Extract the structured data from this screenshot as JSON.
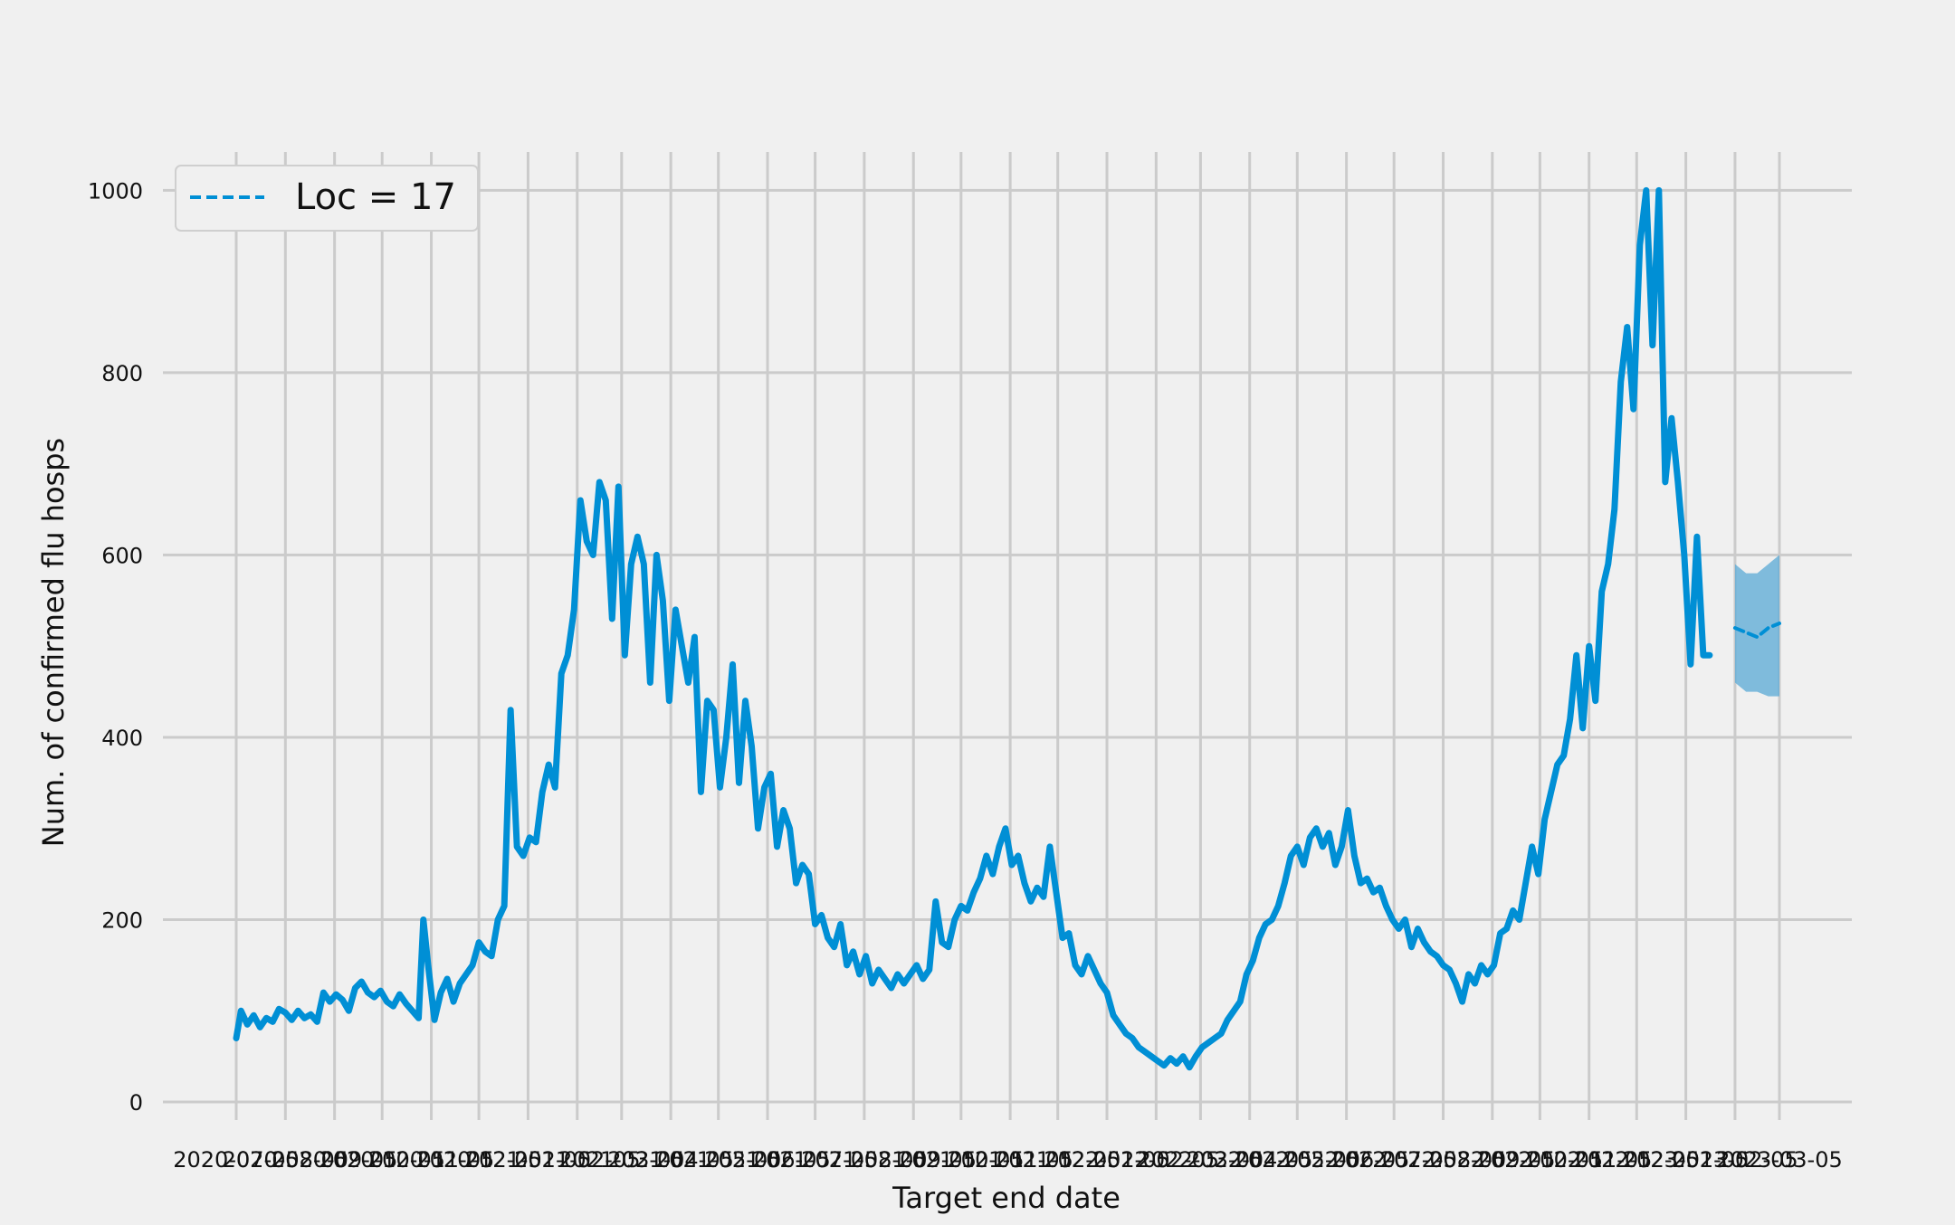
{
  "chart_data": {
    "type": "line",
    "title": "",
    "xlabel": "Target end date",
    "ylabel": "Num. of confirmed flu hosps",
    "ylim": [
      0,
      1050
    ],
    "yticks": [
      0,
      200,
      400,
      600,
      800,
      1000
    ],
    "x_start_date": "2020-07-05",
    "x_end_date": "2023-03-05",
    "xtick_labels": [
      "2020-07-05",
      "2020-08-05",
      "2020-09-05",
      "2020-10-05",
      "2020-11-05",
      "2020-12-05",
      "2021-01-05",
      "2021-02-05",
      "2021-03-05",
      "2021-04-05",
      "2021-05-05",
      "2021-06-05",
      "2021-07-05",
      "2021-08-05",
      "2021-09-05",
      "2021-10-05",
      "2021-11-05",
      "2021-12-05",
      "2022-01-05",
      "2022-02-05",
      "2022-03-05",
      "2022-04-05",
      "2022-05-05",
      "2022-06-05",
      "2022-07-05",
      "2022-08-05",
      "2022-09-05",
      "2022-10-05",
      "2022-11-05",
      "2022-12-05",
      "2023-01-05",
      "2023-02-05",
      "2023-03-05"
    ],
    "grid": true,
    "legend": {
      "placement": "top-left",
      "entries": [
        "Loc = 17"
      ]
    },
    "colors": {
      "line": "#008fd5",
      "band": "#5aa9d6",
      "background": "#f0f0f0",
      "grid": "#cbcbcb"
    },
    "series": [
      {
        "name": "",
        "style": "solid",
        "points": [
          [
            "2020-07-05",
            70
          ],
          [
            "2020-07-08",
            100
          ],
          [
            "2020-07-12",
            85
          ],
          [
            "2020-07-16",
            95
          ],
          [
            "2020-07-20",
            82
          ],
          [
            "2020-07-24",
            92
          ],
          [
            "2020-07-28",
            88
          ],
          [
            "2020-08-01",
            102
          ],
          [
            "2020-08-05",
            98
          ],
          [
            "2020-08-09",
            90
          ],
          [
            "2020-08-13",
            100
          ],
          [
            "2020-08-17",
            92
          ],
          [
            "2020-08-21",
            96
          ],
          [
            "2020-08-25",
            88
          ],
          [
            "2020-08-29",
            120
          ],
          [
            "2020-09-02",
            110
          ],
          [
            "2020-09-06",
            118
          ],
          [
            "2020-09-10",
            112
          ],
          [
            "2020-09-14",
            100
          ],
          [
            "2020-09-18",
            125
          ],
          [
            "2020-09-22",
            132
          ],
          [
            "2020-09-26",
            120
          ],
          [
            "2020-09-30",
            115
          ],
          [
            "2020-10-04",
            122
          ],
          [
            "2020-10-08",
            110
          ],
          [
            "2020-10-12",
            105
          ],
          [
            "2020-10-16",
            118
          ],
          [
            "2020-10-20",
            108
          ],
          [
            "2020-10-24",
            100
          ],
          [
            "2020-10-28",
            92
          ],
          [
            "2020-10-31",
            200
          ],
          [
            "2020-11-03",
            150
          ],
          [
            "2020-11-07",
            90
          ],
          [
            "2020-11-11",
            120
          ],
          [
            "2020-11-15",
            135
          ],
          [
            "2020-11-19",
            110
          ],
          [
            "2020-11-23",
            130
          ],
          [
            "2020-11-27",
            140
          ],
          [
            "2020-12-01",
            150
          ],
          [
            "2020-12-05",
            175
          ],
          [
            "2020-12-09",
            165
          ],
          [
            "2020-12-13",
            160
          ],
          [
            "2020-12-17",
            200
          ],
          [
            "2020-12-21",
            215
          ],
          [
            "2020-12-25",
            430
          ],
          [
            "2020-12-29",
            280
          ],
          [
            "2021-01-02",
            270
          ],
          [
            "2021-01-06",
            290
          ],
          [
            "2021-01-10",
            285
          ],
          [
            "2021-01-14",
            340
          ],
          [
            "2021-01-18",
            370
          ],
          [
            "2021-01-22",
            345
          ],
          [
            "2021-01-26",
            470
          ],
          [
            "2021-01-30",
            490
          ],
          [
            "2021-02-03",
            540
          ],
          [
            "2021-02-07",
            660
          ],
          [
            "2021-02-11",
            615
          ],
          [
            "2021-02-15",
            600
          ],
          [
            "2021-02-19",
            680
          ],
          [
            "2021-02-23",
            660
          ],
          [
            "2021-02-27",
            530
          ],
          [
            "2021-03-03",
            675
          ],
          [
            "2021-03-07",
            490
          ],
          [
            "2021-03-11",
            590
          ],
          [
            "2021-03-15",
            620
          ],
          [
            "2021-03-19",
            590
          ],
          [
            "2021-03-23",
            460
          ],
          [
            "2021-03-27",
            600
          ],
          [
            "2021-03-31",
            550
          ],
          [
            "2021-04-04",
            440
          ],
          [
            "2021-04-08",
            540
          ],
          [
            "2021-04-12",
            500
          ],
          [
            "2021-04-16",
            460
          ],
          [
            "2021-04-20",
            510
          ],
          [
            "2021-04-24",
            340
          ],
          [
            "2021-04-28",
            440
          ],
          [
            "2021-05-02",
            430
          ],
          [
            "2021-05-06",
            345
          ],
          [
            "2021-05-10",
            400
          ],
          [
            "2021-05-14",
            480
          ],
          [
            "2021-05-18",
            350
          ],
          [
            "2021-05-22",
            440
          ],
          [
            "2021-05-26",
            390
          ],
          [
            "2021-05-30",
            300
          ],
          [
            "2021-06-03",
            345
          ],
          [
            "2021-06-07",
            360
          ],
          [
            "2021-06-11",
            280
          ],
          [
            "2021-06-15",
            320
          ],
          [
            "2021-06-19",
            300
          ],
          [
            "2021-06-23",
            240
          ],
          [
            "2021-06-27",
            260
          ],
          [
            "2021-07-01",
            250
          ],
          [
            "2021-07-05",
            195
          ],
          [
            "2021-07-09",
            205
          ],
          [
            "2021-07-13",
            180
          ],
          [
            "2021-07-17",
            170
          ],
          [
            "2021-07-21",
            195
          ],
          [
            "2021-07-25",
            150
          ],
          [
            "2021-07-29",
            165
          ],
          [
            "2021-08-02",
            140
          ],
          [
            "2021-08-06",
            160
          ],
          [
            "2021-08-10",
            130
          ],
          [
            "2021-08-14",
            145
          ],
          [
            "2021-08-18",
            135
          ],
          [
            "2021-08-22",
            125
          ],
          [
            "2021-08-26",
            140
          ],
          [
            "2021-08-30",
            130
          ],
          [
            "2021-09-03",
            140
          ],
          [
            "2021-09-07",
            150
          ],
          [
            "2021-09-11",
            135
          ],
          [
            "2021-09-15",
            145
          ],
          [
            "2021-09-19",
            220
          ],
          [
            "2021-09-23",
            175
          ],
          [
            "2021-09-27",
            170
          ],
          [
            "2021-10-01",
            200
          ],
          [
            "2021-10-05",
            215
          ],
          [
            "2021-10-09",
            210
          ],
          [
            "2021-10-13",
            230
          ],
          [
            "2021-10-17",
            245
          ],
          [
            "2021-10-21",
            270
          ],
          [
            "2021-10-25",
            250
          ],
          [
            "2021-10-29",
            280
          ],
          [
            "2021-11-02",
            300
          ],
          [
            "2021-11-06",
            260
          ],
          [
            "2021-11-10",
            270
          ],
          [
            "2021-11-14",
            240
          ],
          [
            "2021-11-18",
            220
          ],
          [
            "2021-11-22",
            235
          ],
          [
            "2021-11-26",
            225
          ],
          [
            "2021-11-30",
            280
          ],
          [
            "2021-12-04",
            230
          ],
          [
            "2021-12-08",
            180
          ],
          [
            "2021-12-12",
            185
          ],
          [
            "2021-12-16",
            150
          ],
          [
            "2021-12-20",
            140
          ],
          [
            "2021-12-24",
            160
          ],
          [
            "2021-12-28",
            145
          ],
          [
            "2022-01-01",
            130
          ],
          [
            "2022-01-05",
            120
          ],
          [
            "2022-01-09",
            95
          ],
          [
            "2022-01-13",
            85
          ],
          [
            "2022-01-17",
            75
          ],
          [
            "2022-01-21",
            70
          ],
          [
            "2022-01-25",
            60
          ],
          [
            "2022-01-29",
            55
          ],
          [
            "2022-02-02",
            50
          ],
          [
            "2022-02-06",
            45
          ],
          [
            "2022-02-10",
            40
          ],
          [
            "2022-02-14",
            48
          ],
          [
            "2022-02-18",
            42
          ],
          [
            "2022-02-22",
            50
          ],
          [
            "2022-02-26",
            38
          ],
          [
            "2022-03-02",
            50
          ],
          [
            "2022-03-06",
            60
          ],
          [
            "2022-03-10",
            65
          ],
          [
            "2022-03-14",
            70
          ],
          [
            "2022-03-18",
            75
          ],
          [
            "2022-03-22",
            90
          ],
          [
            "2022-03-26",
            100
          ],
          [
            "2022-03-30",
            110
          ],
          [
            "2022-04-03",
            140
          ],
          [
            "2022-04-07",
            155
          ],
          [
            "2022-04-11",
            180
          ],
          [
            "2022-04-15",
            195
          ],
          [
            "2022-04-19",
            200
          ],
          [
            "2022-04-23",
            215
          ],
          [
            "2022-04-27",
            240
          ],
          [
            "2022-05-01",
            270
          ],
          [
            "2022-05-05",
            280
          ],
          [
            "2022-05-09",
            260
          ],
          [
            "2022-05-13",
            290
          ],
          [
            "2022-05-17",
            300
          ],
          [
            "2022-05-21",
            280
          ],
          [
            "2022-05-25",
            295
          ],
          [
            "2022-05-29",
            260
          ],
          [
            "2022-06-02",
            280
          ],
          [
            "2022-06-06",
            320
          ],
          [
            "2022-06-10",
            270
          ],
          [
            "2022-06-14",
            240
          ],
          [
            "2022-06-18",
            245
          ],
          [
            "2022-06-22",
            230
          ],
          [
            "2022-06-26",
            235
          ],
          [
            "2022-06-30",
            215
          ],
          [
            "2022-07-04",
            200
          ],
          [
            "2022-07-08",
            190
          ],
          [
            "2022-07-12",
            200
          ],
          [
            "2022-07-16",
            170
          ],
          [
            "2022-07-20",
            190
          ],
          [
            "2022-07-24",
            175
          ],
          [
            "2022-07-28",
            165
          ],
          [
            "2022-08-01",
            160
          ],
          [
            "2022-08-05",
            150
          ],
          [
            "2022-08-09",
            145
          ],
          [
            "2022-08-13",
            130
          ],
          [
            "2022-08-17",
            110
          ],
          [
            "2022-08-21",
            140
          ],
          [
            "2022-08-25",
            130
          ],
          [
            "2022-08-29",
            150
          ],
          [
            "2022-09-02",
            140
          ],
          [
            "2022-09-06",
            150
          ],
          [
            "2022-09-10",
            185
          ],
          [
            "2022-09-14",
            190
          ],
          [
            "2022-09-18",
            210
          ],
          [
            "2022-09-22",
            200
          ],
          [
            "2022-09-26",
            240
          ],
          [
            "2022-09-30",
            280
          ],
          [
            "2022-10-04",
            250
          ],
          [
            "2022-10-08",
            310
          ],
          [
            "2022-10-12",
            340
          ],
          [
            "2022-10-16",
            370
          ],
          [
            "2022-10-20",
            380
          ],
          [
            "2022-10-24",
            420
          ],
          [
            "2022-10-28",
            490
          ],
          [
            "2022-11-01",
            410
          ],
          [
            "2022-11-05",
            500
          ],
          [
            "2022-11-09",
            440
          ],
          [
            "2022-11-13",
            560
          ],
          [
            "2022-11-17",
            590
          ],
          [
            "2022-11-21",
            650
          ],
          [
            "2022-11-25",
            790
          ],
          [
            "2022-11-29",
            850
          ],
          [
            "2022-12-03",
            760
          ],
          [
            "2022-12-07",
            940
          ],
          [
            "2022-12-11",
            1000
          ],
          [
            "2022-12-15",
            830
          ],
          [
            "2022-12-19",
            1000
          ],
          [
            "2022-12-23",
            680
          ],
          [
            "2022-12-27",
            750
          ],
          [
            "2022-12-31",
            680
          ],
          [
            "2023-01-04",
            600
          ],
          [
            "2023-01-08",
            480
          ],
          [
            "2023-01-12",
            620
          ],
          [
            "2023-01-16",
            490
          ],
          [
            "2023-01-20",
            490
          ]
        ]
      },
      {
        "name": "Loc = 17",
        "style": "dashed",
        "points": [
          [
            "2023-02-05",
            520
          ],
          [
            "2023-02-12",
            515
          ],
          [
            "2023-02-19",
            510
          ],
          [
            "2023-02-26",
            520
          ],
          [
            "2023-03-05",
            525
          ]
        ],
        "band_lower": [
          [
            "2023-02-05",
            460
          ],
          [
            "2023-02-12",
            450
          ],
          [
            "2023-02-19",
            450
          ],
          [
            "2023-02-26",
            445
          ],
          [
            "2023-03-05",
            445
          ]
        ],
        "band_upper": [
          [
            "2023-02-05",
            590
          ],
          [
            "2023-02-12",
            580
          ],
          [
            "2023-02-19",
            580
          ],
          [
            "2023-02-26",
            590
          ],
          [
            "2023-03-05",
            600
          ]
        ]
      }
    ]
  }
}
